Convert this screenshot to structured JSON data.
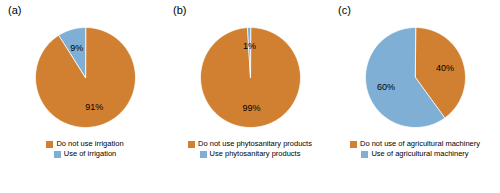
{
  "chart_data": [
    {
      "type": "pie",
      "title": "(a)",
      "categories": [
        "Do not use irrigation",
        "Use of irrigation"
      ],
      "values": [
        91,
        9
      ],
      "value_labels": [
        "91%",
        "9%"
      ],
      "colors": [
        "#d08030",
        "#7fafd4"
      ],
      "data_labels": true,
      "legend": "bottom"
    },
    {
      "type": "pie",
      "title": "(b)",
      "categories": [
        "Do not use phytosanitary products",
        "Use phytosanitary products"
      ],
      "values": [
        99,
        1
      ],
      "value_labels": [
        "99%",
        "1%"
      ],
      "colors": [
        "#d08030",
        "#7fafd4"
      ],
      "data_labels": true,
      "legend": "bottom"
    },
    {
      "type": "pie",
      "title": "(c)",
      "categories": [
        "Do not use of agricultural machinery",
        "Use of agricultural machinery"
      ],
      "values": [
        40,
        60
      ],
      "value_labels": [
        "40%",
        "60%"
      ],
      "colors": [
        "#d08030",
        "#7fafd4"
      ],
      "data_labels": true,
      "legend": "bottom"
    }
  ]
}
